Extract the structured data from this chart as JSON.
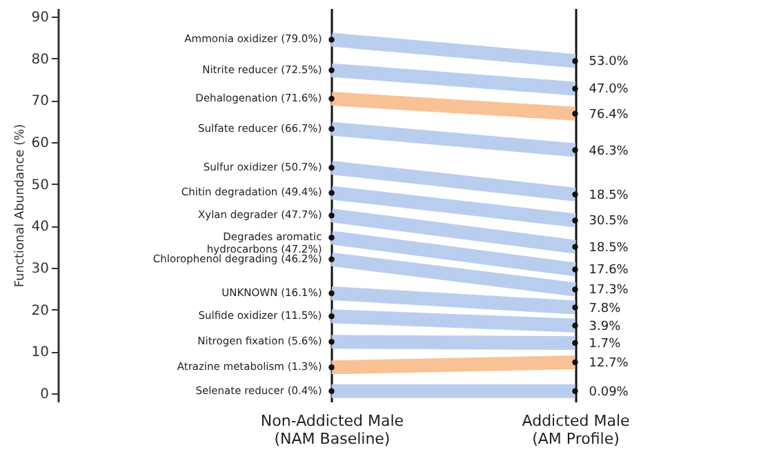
{
  "chart_data": {
    "type": "line",
    "ylabel": "Functional Abundance (%)",
    "categories": [
      "Non-Addicted Male (NAM Baseline)",
      "Addicted Male (AM Profile)"
    ],
    "ylim": [
      -2,
      92
    ],
    "yticks": [
      0,
      10,
      20,
      30,
      40,
      50,
      60,
      70,
      80,
      90
    ],
    "grid": "x",
    "marker": "circle",
    "series": [
      {
        "name": "Ammonia oxidizer (79.0%)",
        "color": "#b5cbee",
        "values": [
          84.5,
          79.4
        ]
      },
      {
        "name": "Nitrite reducer (72.5%)",
        "color": "#b5cbee",
        "values": [
          77.2,
          72.8
        ]
      },
      {
        "name": "Dehalogenation (71.6%)",
        "color": "#f9bf8f",
        "values": [
          70.4,
          66.8
        ]
      },
      {
        "name": "Sulfate reducer (66.7%)",
        "color": "#b5cbee",
        "values": [
          63.2,
          58.1
        ]
      },
      {
        "name": "Sulfur oxidizer (50.7%)",
        "color": "#b5cbee",
        "values": [
          53.9,
          47.5
        ]
      },
      {
        "name": "Chitin degradation (49.4%)",
        "color": "#b5cbee",
        "values": [
          47.9,
          41.3
        ]
      },
      {
        "name": "Xylan degrader (47.7%)",
        "color": "#b5cbee",
        "values": [
          42.5,
          35.0
        ]
      },
      {
        "name": "Degrades aromatic hydrocarbons (47.2%)",
        "color": "#b5cbee",
        "values": [
          37.2,
          29.6
        ]
      },
      {
        "name": "Chlorophenol degrading (46.2%)",
        "color": "#b5cbee",
        "values": [
          32.0,
          24.8
        ]
      },
      {
        "name": "UNKNOWN (16.1%)",
        "color": "#b5cbee",
        "values": [
          23.9,
          20.5
        ]
      },
      {
        "name": "Sulfide oxidizer (11.5%)",
        "color": "#b5cbee",
        "values": [
          18.4,
          16.2
        ]
      },
      {
        "name": "Nitrogen fixation (5.6%)",
        "color": "#b5cbee",
        "values": [
          12.3,
          12.0
        ]
      },
      {
        "name": "Atrazine metabolism (1.3%)",
        "color": "#f9bf8f",
        "values": [
          6.2,
          7.4
        ]
      },
      {
        "name": "Selenate reducer (0.4%)",
        "color": "#b5cbee",
        "values": [
          0.5,
          0.5
        ]
      }
    ],
    "annotations": [
      {
        "text": "53.0%",
        "x": "Addicted Male (AM Profile)",
        "y": 79.4
      },
      {
        "text": "47.0%",
        "x": "Addicted Male (AM Profile)",
        "y": 72.8
      },
      {
        "text": "76.4%",
        "x": "Addicted Male (AM Profile)",
        "y": 66.8
      },
      {
        "text": "46.3%",
        "x": "Addicted Male (AM Profile)",
        "y": 58.1
      },
      {
        "text": "18.5%",
        "x": "Addicted Male (AM Profile)",
        "y": 47.5
      },
      {
        "text": "30.5%",
        "x": "Addicted Male (AM Profile)",
        "y": 41.3
      },
      {
        "text": "18.5%",
        "x": "Addicted Male (AM Profile)",
        "y": 35.0
      },
      {
        "text": "17.6%",
        "x": "Addicted Male (AM Profile)",
        "y": 29.6
      },
      {
        "text": "17.3%",
        "x": "Addicted Male (AM Profile)",
        "y": 24.8
      },
      {
        "text": "7.8%",
        "x": "Addicted Male (AM Profile)",
        "y": 20.5
      },
      {
        "text": "3.9%",
        "x": "Addicted Male (AM Profile)",
        "y": 16.2
      },
      {
        "text": "1.7%",
        "x": "Addicted Male (AM Profile)",
        "y": 12.0
      },
      {
        "text": "12.7%",
        "x": "Addicted Male (AM Profile)",
        "y": 7.4
      },
      {
        "text": "0.09%",
        "x": "Addicted Male (AM Profile)",
        "y": 0.5
      }
    ]
  }
}
